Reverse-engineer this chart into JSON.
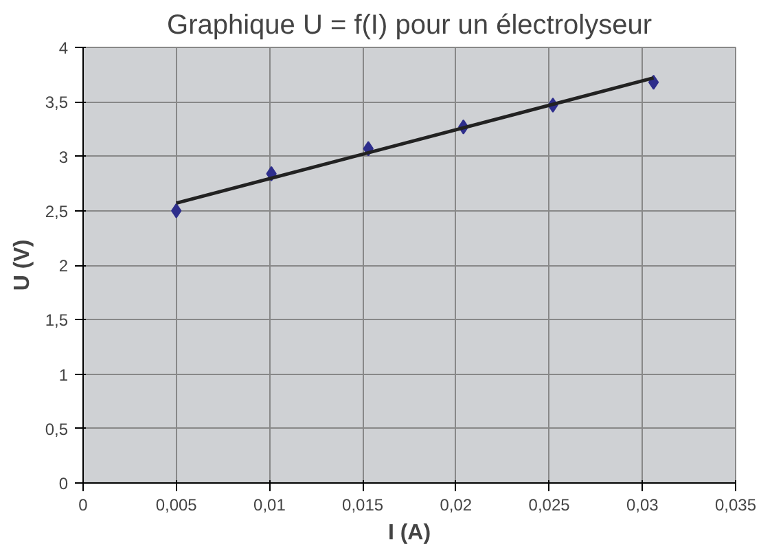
{
  "chart_data": {
    "type": "scatter",
    "title": "Graphique U = f(I) pour un électrolyseur",
    "xlabel": "I (A)",
    "ylabel": "U (V)",
    "x": [
      0.005,
      0.0101,
      0.0153,
      0.0204,
      0.0252,
      0.0306
    ],
    "series": [
      {
        "color": "#2e2e8c",
        "marker": "diamond",
        "values": [
          2.5,
          2.84,
          3.07,
          3.27,
          3.47,
          3.68
        ]
      },
      {
        "type": "line",
        "color": "#222222",
        "marker": "none",
        "x": [
          0.005,
          0.0306
        ],
        "values": [
          2.57,
          3.72
        ]
      }
    ],
    "xlim": [
      0,
      0.035
    ],
    "ylim": [
      0,
      4
    ],
    "xticks": [
      0,
      {
        "value": 0.005,
        "label": "0,005"
      },
      {
        "value": 0.01,
        "label": "0,01"
      },
      {
        "value": 0.015,
        "label": "0,015"
      },
      {
        "value": 0.02,
        "label": "0,02"
      },
      {
        "value": 0.025,
        "label": "0,025"
      },
      {
        "value": 0.03,
        "label": "0,03"
      },
      {
        "value": 0.035,
        "label": "0,035"
      }
    ],
    "yticks": [
      0,
      {
        "value": 0.5,
        "label": "0,5"
      },
      1,
      {
        "value": 1.5,
        "label": "1,5"
      },
      2,
      {
        "value": 2.5,
        "label": "2,5"
      },
      3,
      {
        "value": 3.5,
        "label": "3,5"
      },
      4
    ],
    "grid": true
  }
}
